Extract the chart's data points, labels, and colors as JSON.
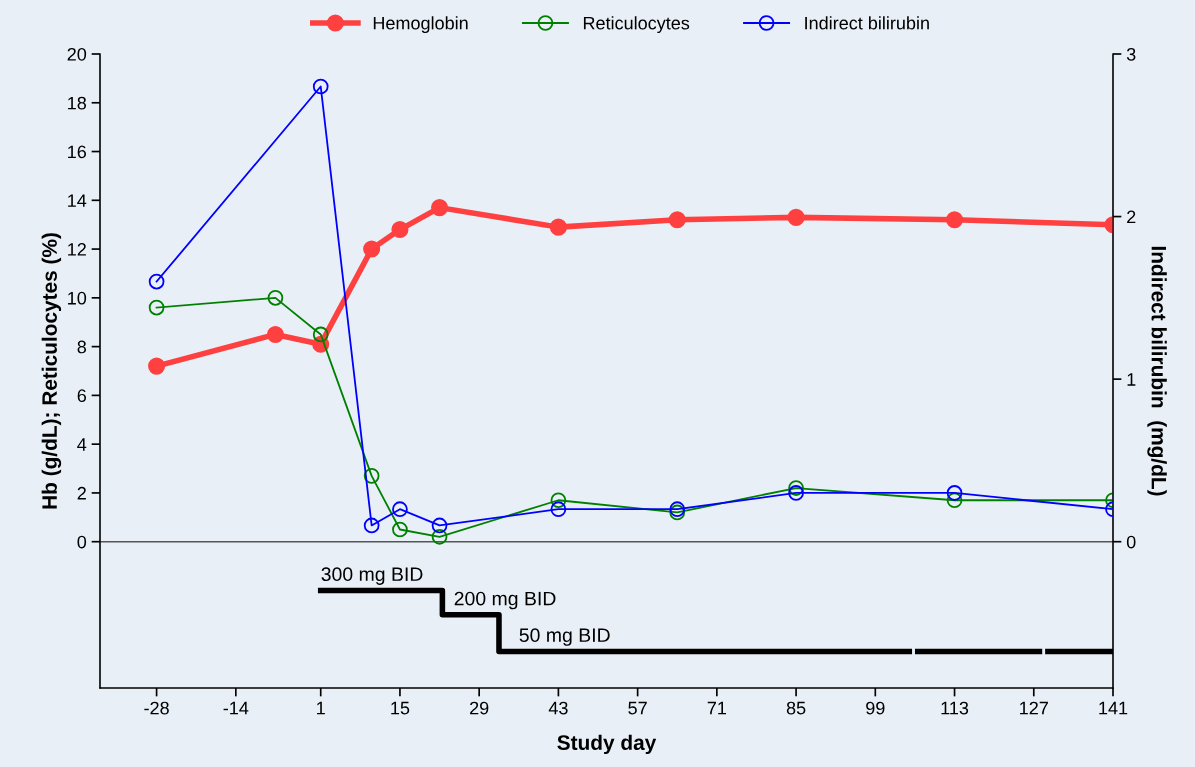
{
  "chart_data": {
    "type": "line",
    "xlabel": "Study day",
    "ylabel": "Hb (g/dL); Reticulocytes (%)",
    "y2label": "Indirect bilirubin  (mg/dL)",
    "xlim": [
      -38,
      141
    ],
    "xticks": [
      -28,
      -14,
      1,
      15,
      29,
      43,
      57,
      71,
      85,
      99,
      113,
      127,
      141
    ],
    "ylim": [
      -6,
      20
    ],
    "yticks": [
      0,
      2,
      4,
      6,
      8,
      10,
      12,
      14,
      16,
      18,
      20
    ],
    "y2lim": [
      -0.9,
      3
    ],
    "y2ticks": [
      0,
      1,
      2,
      3
    ],
    "legend": "top",
    "grid": false,
    "series": [
      {
        "name": "Hemoglobin",
        "color": "#ff4040",
        "marker": "circle",
        "x": [
          -28,
          -7,
          1,
          10,
          15,
          22,
          43,
          64,
          85,
          113,
          141
        ],
        "values": [
          7.2,
          8.5,
          8.1,
          12.0,
          12.8,
          13.7,
          12.9,
          13.2,
          13.3,
          13.2,
          13.0
        ]
      },
      {
        "name": "Reticulocytes",
        "color": "#008000",
        "marker": "circle-open",
        "x": [
          -28,
          -7,
          1,
          10,
          15,
          22,
          43,
          64,
          85,
          113,
          141
        ],
        "values": [
          9.6,
          10.0,
          8.5,
          2.7,
          0.5,
          0.2,
          1.7,
          1.2,
          2.2,
          1.7,
          1.7
        ]
      },
      {
        "name": "Indirect bilirubin",
        "color": "#0000ff",
        "marker": "circle-open",
        "axis": "y2",
        "x": [
          -28,
          1,
          10,
          15,
          22,
          43,
          64,
          85,
          113,
          141
        ],
        "values": [
          1.6,
          2.8,
          0.1,
          0.2,
          0.1,
          0.2,
          0.2,
          0.3,
          0.3,
          0.2
        ]
      },
      {
        "type": "step",
        "color": "#000000",
        "marker": "none",
        "x": [
          1,
          22.5,
          32.5,
          105,
          106.5,
          128,
          129.5,
          141
        ],
        "values": [
          -2,
          -3,
          -4.5,
          null,
          -4.5,
          null,
          -4.5,
          -4.5
        ]
      }
    ],
    "ref_lines": [
      {
        "axis": "y",
        "value": 0,
        "color": "#555555"
      }
    ],
    "annotations": [
      {
        "text": "300 mg BID",
        "x": 1,
        "y": -2
      },
      {
        "text": "200 mg BID",
        "x": 24.5,
        "y": -3
      },
      {
        "text": "50 mg BID",
        "x": 36,
        "y": -4.5
      }
    ]
  }
}
